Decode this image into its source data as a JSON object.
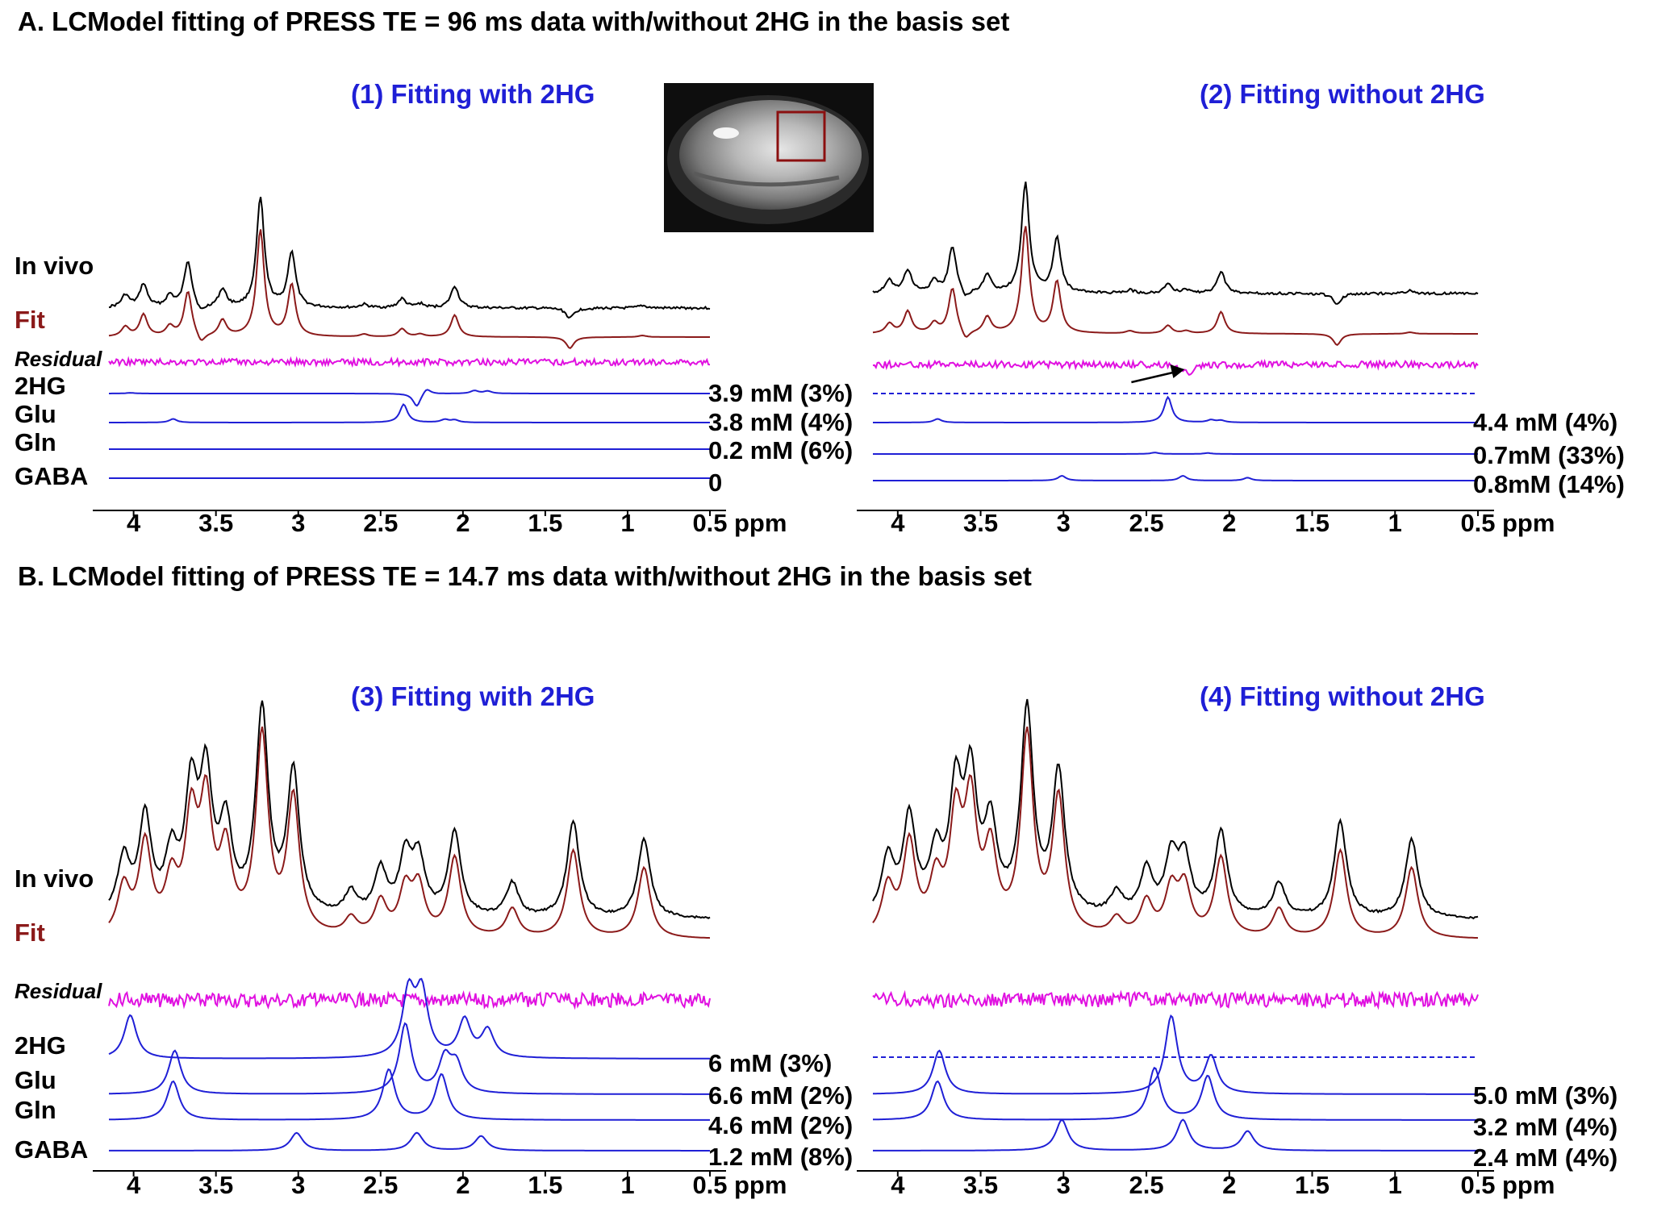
{
  "colors": {
    "invivo": "#000000",
    "fit": "#8b1a1a",
    "residual": "#e010e0",
    "metabolite": "#1f1fd6",
    "roi_box": "#8b1010",
    "panel_title": "#1f1fd6"
  },
  "sections": [
    {
      "title": "A. LCModel fitting of PRESS TE = 96 ms data with/without 2HG in the basis set"
    },
    {
      "title": "B. LCModel fitting of PRESS TE = 14.7 ms data with/without 2HG in the basis set"
    }
  ],
  "row_labels": {
    "invivo": "In vivo",
    "fit": "Fit",
    "residual": "Residual"
  },
  "mri_inset": {
    "icon": "mri-brain-image-with-roi-box"
  },
  "annotation": {
    "icon": "arrow-icon",
    "points_to_ppm": 2.25
  },
  "chart_data": [
    {
      "type": "line",
      "panel": "A1",
      "title": "(1) Fitting with 2HG",
      "xlabel": "ppm",
      "xlim": [
        4.15,
        0.5
      ],
      "xticks": [
        "4",
        "3.5",
        "3",
        "2.5",
        "2",
        "1.5",
        "1",
        "0.5"
      ],
      "series": [
        {
          "name": "In vivo",
          "peaks": [
            [
              4.05,
              0.38
            ],
            [
              3.94,
              0.72
            ],
            [
              3.78,
              0.35
            ],
            [
              3.67,
              1.45
            ],
            [
              3.59,
              -0.25
            ],
            [
              3.46,
              0.55
            ],
            [
              3.23,
              3.4
            ],
            [
              3.04,
              1.72
            ],
            [
              2.6,
              0.1
            ],
            [
              2.37,
              0.28
            ],
            [
              2.26,
              0.12
            ],
            [
              2.05,
              0.68
            ],
            [
              1.35,
              -0.32
            ],
            [
              0.91,
              0.08
            ]
          ]
        },
        {
          "name": "Fit",
          "peaks": [
            [
              4.05,
              0.3
            ],
            [
              3.94,
              0.68
            ],
            [
              3.78,
              0.3
            ],
            [
              3.67,
              1.4
            ],
            [
              3.59,
              -0.3
            ],
            [
              3.46,
              0.5
            ],
            [
              3.23,
              3.3
            ],
            [
              3.04,
              1.6
            ],
            [
              2.6,
              0.08
            ],
            [
              2.37,
              0.25
            ],
            [
              2.26,
              0.08
            ],
            [
              2.05,
              0.68
            ],
            [
              1.35,
              -0.35
            ],
            [
              0.91,
              0.05
            ]
          ]
        },
        {
          "name": "Residual",
          "values": "noise"
        },
        {
          "name": "2HG",
          "concentration": "3.9 mM (3%)",
          "peaks": [
            [
              4.02,
              0.03
            ],
            [
              2.28,
              -0.55
            ],
            [
              2.22,
              0.25
            ],
            [
              1.93,
              0.12
            ],
            [
              1.85,
              0.1
            ]
          ]
        },
        {
          "name": "Glu",
          "concentration": "3.8 mM (4%)",
          "peaks": [
            [
              3.76,
              0.15
            ],
            [
              2.36,
              0.75
            ],
            [
              2.11,
              0.12
            ],
            [
              2.05,
              0.1
            ]
          ]
        },
        {
          "name": "Gln",
          "concentration": "0.2 mM (6%)",
          "peaks": []
        },
        {
          "name": "GABA",
          "concentration": "0",
          "peaks": []
        }
      ]
    },
    {
      "type": "line",
      "panel": "A2",
      "title": "(2) Fitting without 2HG",
      "xlabel": "ppm",
      "xlim": [
        4.15,
        0.5
      ],
      "xticks": [
        "4",
        "3.5",
        "3",
        "2.5",
        "2",
        "1.5",
        "1",
        "0.5"
      ],
      "series": [
        {
          "name": "In vivo",
          "peaks": [
            [
              4.05,
              0.38
            ],
            [
              3.94,
              0.72
            ],
            [
              3.78,
              0.35
            ],
            [
              3.67,
              1.45
            ],
            [
              3.59,
              -0.25
            ],
            [
              3.46,
              0.55
            ],
            [
              3.23,
              3.4
            ],
            [
              3.04,
              1.72
            ],
            [
              2.6,
              0.1
            ],
            [
              2.37,
              0.28
            ],
            [
              2.26,
              0.12
            ],
            [
              2.05,
              0.68
            ],
            [
              1.35,
              -0.32
            ],
            [
              0.91,
              0.08
            ]
          ]
        },
        {
          "name": "Fit",
          "peaks": [
            [
              4.05,
              0.3
            ],
            [
              3.94,
              0.68
            ],
            [
              3.78,
              0.3
            ],
            [
              3.67,
              1.4
            ],
            [
              3.59,
              -0.3
            ],
            [
              3.46,
              0.5
            ],
            [
              3.23,
              3.3
            ],
            [
              3.04,
              1.6
            ],
            [
              2.6,
              0.08
            ],
            [
              2.37,
              0.25
            ],
            [
              2.26,
              0.08
            ],
            [
              2.05,
              0.68
            ],
            [
              1.35,
              -0.35
            ],
            [
              0.91,
              0.05
            ]
          ]
        },
        {
          "name": "Residual",
          "values": "noise",
          "dip_at_ppm": 2.25
        },
        {
          "name": "2HG",
          "concentration": "",
          "excluded": true,
          "peaks": []
        },
        {
          "name": "Glu",
          "concentration": "4.4 mM (4%)",
          "peaks": [
            [
              3.76,
              0.15
            ],
            [
              2.37,
              1.05
            ],
            [
              2.11,
              0.1
            ],
            [
              2.05,
              0.08
            ]
          ]
        },
        {
          "name": "Gln",
          "concentration": "0.7mM (33%)",
          "peaks": [
            [
              2.45,
              0.06
            ],
            [
              2.13,
              0.04
            ]
          ]
        },
        {
          "name": "GABA",
          "concentration": "0.8mM (14%)",
          "peaks": [
            [
              3.01,
              0.2
            ],
            [
              2.28,
              0.2
            ],
            [
              1.89,
              0.12
            ]
          ]
        }
      ]
    },
    {
      "type": "line",
      "panel": "B1",
      "title": "(3) Fitting with 2HG",
      "xlabel": "ppm",
      "xlim": [
        4.15,
        0.5
      ],
      "xticks": [
        "4",
        "3.5",
        "3",
        "2.5",
        "2",
        "1.5",
        "1",
        "0.5"
      ],
      "series": [
        {
          "name": "In vivo",
          "peaks": [
            [
              4.06,
              1.0
            ],
            [
              3.93,
              1.7
            ],
            [
              3.77,
              1.0
            ],
            [
              3.65,
              2.1
            ],
            [
              3.56,
              2.3
            ],
            [
              3.44,
              1.5
            ],
            [
              3.22,
              3.6
            ],
            [
              3.03,
              2.5
            ],
            [
              2.68,
              0.4
            ],
            [
              2.5,
              0.8
            ],
            [
              2.35,
              1.0
            ],
            [
              2.27,
              1.0
            ],
            [
              2.05,
              1.5
            ],
            [
              1.7,
              0.6
            ],
            [
              1.33,
              1.7
            ],
            [
              0.9,
              1.4
            ]
          ]
        },
        {
          "name": "Fit",
          "peaks": [
            [
              4.06,
              0.85
            ],
            [
              3.93,
              1.6
            ],
            [
              3.77,
              0.9
            ],
            [
              3.65,
              1.95
            ],
            [
              3.56,
              2.2
            ],
            [
              3.44,
              1.4
            ],
            [
              3.22,
              3.5
            ],
            [
              3.03,
              2.4
            ],
            [
              2.68,
              0.3
            ],
            [
              2.5,
              0.6
            ],
            [
              2.35,
              0.8
            ],
            [
              2.27,
              0.85
            ],
            [
              2.05,
              1.4
            ],
            [
              1.7,
              0.5
            ],
            [
              1.33,
              1.55
            ],
            [
              0.9,
              1.25
            ]
          ]
        },
        {
          "name": "Residual",
          "values": "noise"
        },
        {
          "name": "2HG",
          "concentration": "6 mM (3%)",
          "peaks": [
            [
              4.02,
              1.35
            ],
            [
              2.33,
              1.95
            ],
            [
              2.25,
              1.95
            ],
            [
              1.99,
              1.15
            ],
            [
              1.85,
              0.85
            ]
          ]
        },
        {
          "name": "Glu",
          "concentration": "6.6 mM (2%)",
          "peaks": [
            [
              3.75,
              1.35
            ],
            [
              2.35,
              2.15
            ],
            [
              2.11,
              1.05
            ],
            [
              2.04,
              0.85
            ]
          ]
        },
        {
          "name": "Gln",
          "concentration": "4.6 mM (2%)",
          "peaks": [
            [
              3.76,
              1.2
            ],
            [
              2.45,
              1.55
            ],
            [
              2.13,
              1.4
            ]
          ]
        },
        {
          "name": "GABA",
          "concentration": "1.2 mM (8%)",
          "peaks": [
            [
              3.01,
              0.55
            ],
            [
              2.28,
              0.55
            ],
            [
              1.89,
              0.45
            ]
          ]
        }
      ]
    },
    {
      "type": "line",
      "panel": "B2",
      "title": "(4) Fitting without 2HG",
      "xlabel": "ppm",
      "xlim": [
        4.15,
        0.5
      ],
      "xticks": [
        "4",
        "3.5",
        "3",
        "2.5",
        "2",
        "1.5",
        "1",
        "0.5"
      ],
      "series": [
        {
          "name": "In vivo",
          "peaks": [
            [
              4.06,
              1.0
            ],
            [
              3.93,
              1.7
            ],
            [
              3.77,
              1.0
            ],
            [
              3.65,
              2.1
            ],
            [
              3.56,
              2.3
            ],
            [
              3.44,
              1.5
            ],
            [
              3.22,
              3.6
            ],
            [
              3.03,
              2.5
            ],
            [
              2.68,
              0.4
            ],
            [
              2.5,
              0.8
            ],
            [
              2.35,
              1.0
            ],
            [
              2.27,
              1.0
            ],
            [
              2.05,
              1.5
            ],
            [
              1.7,
              0.6
            ],
            [
              1.33,
              1.7
            ],
            [
              0.9,
              1.4
            ]
          ]
        },
        {
          "name": "Fit",
          "peaks": [
            [
              4.06,
              0.85
            ],
            [
              3.93,
              1.6
            ],
            [
              3.77,
              0.9
            ],
            [
              3.65,
              1.95
            ],
            [
              3.56,
              2.2
            ],
            [
              3.44,
              1.4
            ],
            [
              3.22,
              3.5
            ],
            [
              3.03,
              2.4
            ],
            [
              2.68,
              0.3
            ],
            [
              2.5,
              0.6
            ],
            [
              2.35,
              0.8
            ],
            [
              2.27,
              0.85
            ],
            [
              2.05,
              1.4
            ],
            [
              1.7,
              0.5
            ],
            [
              1.33,
              1.55
            ],
            [
              0.9,
              1.25
            ]
          ]
        },
        {
          "name": "Residual",
          "values": "noise"
        },
        {
          "name": "2HG",
          "concentration": "",
          "excluded": true,
          "peaks": []
        },
        {
          "name": "Glu",
          "concentration": "5.0 mM (3%)",
          "peaks": [
            [
              3.75,
              1.35
            ],
            [
              2.35,
              2.4
            ],
            [
              2.11,
              1.15
            ]
          ]
        },
        {
          "name": "Gln",
          "concentration": "3.2 mM (4%)",
          "peaks": [
            [
              3.76,
              1.2
            ],
            [
              2.45,
              1.6
            ],
            [
              2.13,
              1.35
            ]
          ]
        },
        {
          "name": "GABA",
          "concentration": "2.4 mM (4%)",
          "peaks": [
            [
              3.01,
              0.95
            ],
            [
              2.28,
              0.95
            ],
            [
              1.89,
              0.6
            ]
          ]
        }
      ]
    }
  ]
}
